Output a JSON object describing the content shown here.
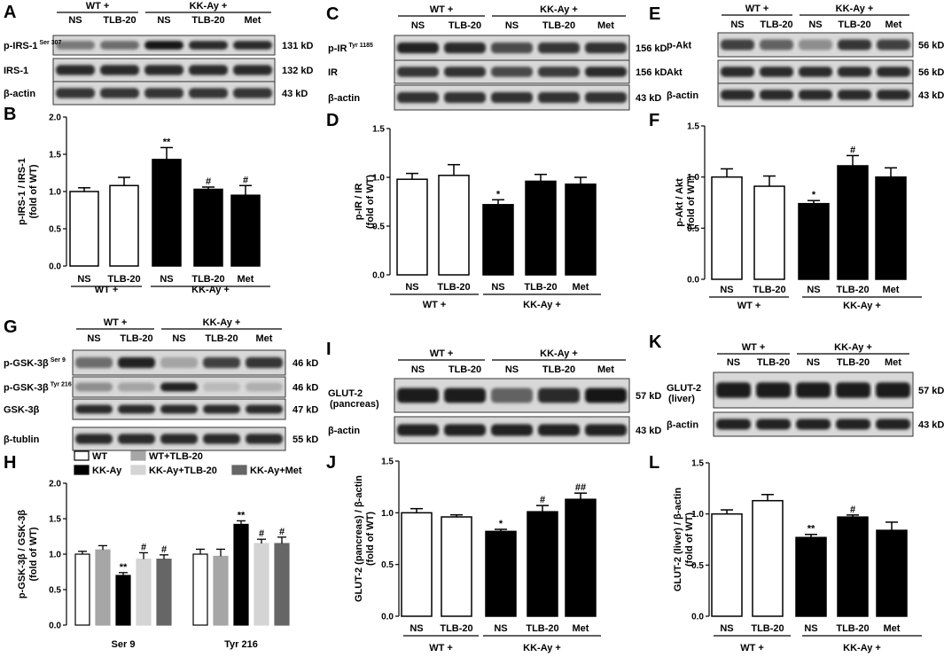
{
  "labels": {
    "A": "A",
    "B": "B",
    "C": "C",
    "D": "D",
    "E": "E",
    "F": "F",
    "G": "G",
    "H": "H",
    "I": "I",
    "J": "J",
    "K": "K",
    "L": "L"
  },
  "groups": {
    "wt": "WT +",
    "kk": "KK-Ay +"
  },
  "lanes": {
    "ns": "NS",
    "tlb": "TLB-20",
    "met": "Met"
  },
  "blots": {
    "A": {
      "rows": [
        {
          "protein": "p-IRS-1",
          "sup": "Ser 307",
          "kd": "131 kD"
        },
        {
          "protein": "IRS-1",
          "sup": "",
          "kd": "132 kD"
        },
        {
          "protein": "β-actin",
          "sup": "",
          "kd": "43 kD"
        }
      ]
    },
    "C": {
      "rows": [
        {
          "protein": "p-IR",
          "sup": "Tyr 1185",
          "kd": "156 kD"
        },
        {
          "protein": "IR",
          "sup": "",
          "kd": "156 kD"
        },
        {
          "protein": "β-actin",
          "sup": "",
          "kd": "43 kD"
        }
      ]
    },
    "E": {
      "rows": [
        {
          "protein": "p-Akt",
          "sup": "",
          "kd": "56 kD"
        },
        {
          "protein": "Akt",
          "sup": "",
          "kd": "56 kD"
        },
        {
          "protein": "β-actin",
          "sup": "",
          "kd": "43 kD"
        }
      ]
    },
    "G": {
      "rows": [
        {
          "protein": "p-GSK-3β",
          "sup": "Ser 9",
          "kd": "46 kD"
        },
        {
          "protein": "p-GSK-3β",
          "sup": "Tyr 216",
          "kd": "46 kD"
        },
        {
          "protein": "GSK-3β",
          "sup": "",
          "kd": "47 kD"
        },
        {
          "protein": "β-tublin",
          "sup": "",
          "kd": "55 kD"
        }
      ]
    },
    "I": {
      "rows": [
        {
          "protein": "GLUT-2",
          "sub": "(pancreas)",
          "kd": "57 kD"
        },
        {
          "protein": "β-actin",
          "sup": "",
          "kd": "43 kD"
        }
      ]
    },
    "K": {
      "rows": [
        {
          "protein": "GLUT-2",
          "sub": "(liver)",
          "kd": "57 kD"
        },
        {
          "protein": "β-actin",
          "sup": "",
          "kd": "43 kD"
        }
      ]
    }
  },
  "chart_data": [
    {
      "panel": "B",
      "type": "bar",
      "ylabel": "p-IRS-1 / IRS-1 (fold of WT)",
      "ylim": [
        0,
        2
      ],
      "yticks": [
        0,
        0.5,
        1,
        1.5,
        2
      ],
      "categories": [
        "NS",
        "TLB-20",
        "NS",
        "TLB-20",
        "Met"
      ],
      "values": [
        1.0,
        1.08,
        1.43,
        1.03,
        0.95
      ],
      "errors": [
        0.05,
        0.11,
        0.16,
        0.03,
        0.13
      ],
      "fill": [
        "#ffffff",
        "#ffffff",
        "#000000",
        "#000000",
        "#000000"
      ],
      "sig": [
        "",
        "",
        "**",
        "#",
        "#"
      ]
    },
    {
      "panel": "D",
      "type": "bar",
      "ylabel": "p-IR / IR (fold of WT)",
      "ylim": [
        0,
        1.5
      ],
      "yticks": [
        0,
        0.5,
        1,
        1.5
      ],
      "categories": [
        "NS",
        "TLB-20",
        "NS",
        "TLB-20",
        "Met"
      ],
      "values": [
        0.98,
        1.02,
        0.72,
        0.96,
        0.93
      ],
      "errors": [
        0.06,
        0.11,
        0.05,
        0.07,
        0.07
      ],
      "fill": [
        "#ffffff",
        "#ffffff",
        "#000000",
        "#000000",
        "#000000"
      ],
      "sig": [
        "",
        "",
        "*",
        "",
        ""
      ]
    },
    {
      "panel": "F",
      "type": "bar",
      "ylabel": "p-Akt / Akt (fold of WT)",
      "ylim": [
        0,
        1.5
      ],
      "yticks": [
        0,
        0.5,
        1,
        1.5
      ],
      "categories": [
        "NS",
        "TLB-20",
        "NS",
        "TLB-20",
        "Met"
      ],
      "values": [
        1.0,
        0.91,
        0.74,
        1.11,
        1.0
      ],
      "errors": [
        0.08,
        0.1,
        0.03,
        0.1,
        0.09
      ],
      "fill": [
        "#ffffff",
        "#ffffff",
        "#000000",
        "#000000",
        "#000000"
      ],
      "sig": [
        "",
        "",
        "*",
        "#",
        ""
      ]
    },
    {
      "panel": "H",
      "type": "bar",
      "ylabel": "p-GSK-3β / GSK-3β (fold of WT)",
      "ylim": [
        0,
        2
      ],
      "yticks": [
        0,
        0.5,
        1,
        1.5,
        2
      ],
      "categories": [
        "Ser 9",
        "Tyr 216"
      ],
      "series": [
        {
          "name": "WT",
          "fill": "#ffffff",
          "values": [
            1.0,
            1.0
          ],
          "errors": [
            0.04,
            0.07
          ],
          "sig": [
            "",
            ""
          ]
        },
        {
          "name": "WT+TLB-20",
          "fill": "#a6a6a6",
          "values": [
            1.06,
            0.97
          ],
          "errors": [
            0.06,
            0.1
          ],
          "sig": [
            "",
            ""
          ]
        },
        {
          "name": "KK-Ay",
          "fill": "#000000",
          "values": [
            0.7,
            1.42
          ],
          "errors": [
            0.04,
            0.05
          ],
          "sig": [
            "**",
            "**"
          ]
        },
        {
          "name": "KK-Ay+TLB-20",
          "fill": "#d4d4d4",
          "values": [
            0.93,
            1.15
          ],
          "errors": [
            0.09,
            0.06
          ],
          "sig": [
            "#",
            "#"
          ]
        },
        {
          "name": "KK-Ay+Met",
          "fill": "#666666",
          "values": [
            0.93,
            1.15
          ],
          "errors": [
            0.06,
            0.09
          ],
          "sig": [
            "#",
            "#"
          ]
        }
      ]
    },
    {
      "panel": "J",
      "type": "bar",
      "ylabel": "GLUT-2 (pancreas) / β-actin (fold of WT)",
      "ylim": [
        0,
        1.5
      ],
      "yticks": [
        0,
        0.5,
        1,
        1.5
      ],
      "categories": [
        "NS",
        "TLB-20",
        "NS",
        "TLB-20",
        "Met"
      ],
      "values": [
        1.0,
        0.96,
        0.82,
        1.01,
        1.13
      ],
      "errors": [
        0.04,
        0.02,
        0.02,
        0.06,
        0.06
      ],
      "fill": [
        "#ffffff",
        "#ffffff",
        "#000000",
        "#000000",
        "#000000"
      ],
      "sig": [
        "",
        "",
        "*",
        "#",
        "##"
      ]
    },
    {
      "panel": "L",
      "type": "bar",
      "ylabel": "GLUT-2 (liver) / β-actin (fold of WT)",
      "ylim": [
        0,
        1.5
      ],
      "yticks": [
        0,
        0.5,
        1,
        1.5
      ],
      "categories": [
        "NS",
        "TLB-20",
        "NS",
        "TLB-20",
        "Met"
      ],
      "values": [
        1.0,
        1.13,
        0.77,
        0.97,
        0.84
      ],
      "errors": [
        0.04,
        0.06,
        0.03,
        0.02,
        0.08
      ],
      "fill": [
        "#ffffff",
        "#ffffff",
        "#000000",
        "#000000",
        "#000000"
      ],
      "sig": [
        "",
        "",
        "**",
        "#",
        ""
      ]
    }
  ]
}
